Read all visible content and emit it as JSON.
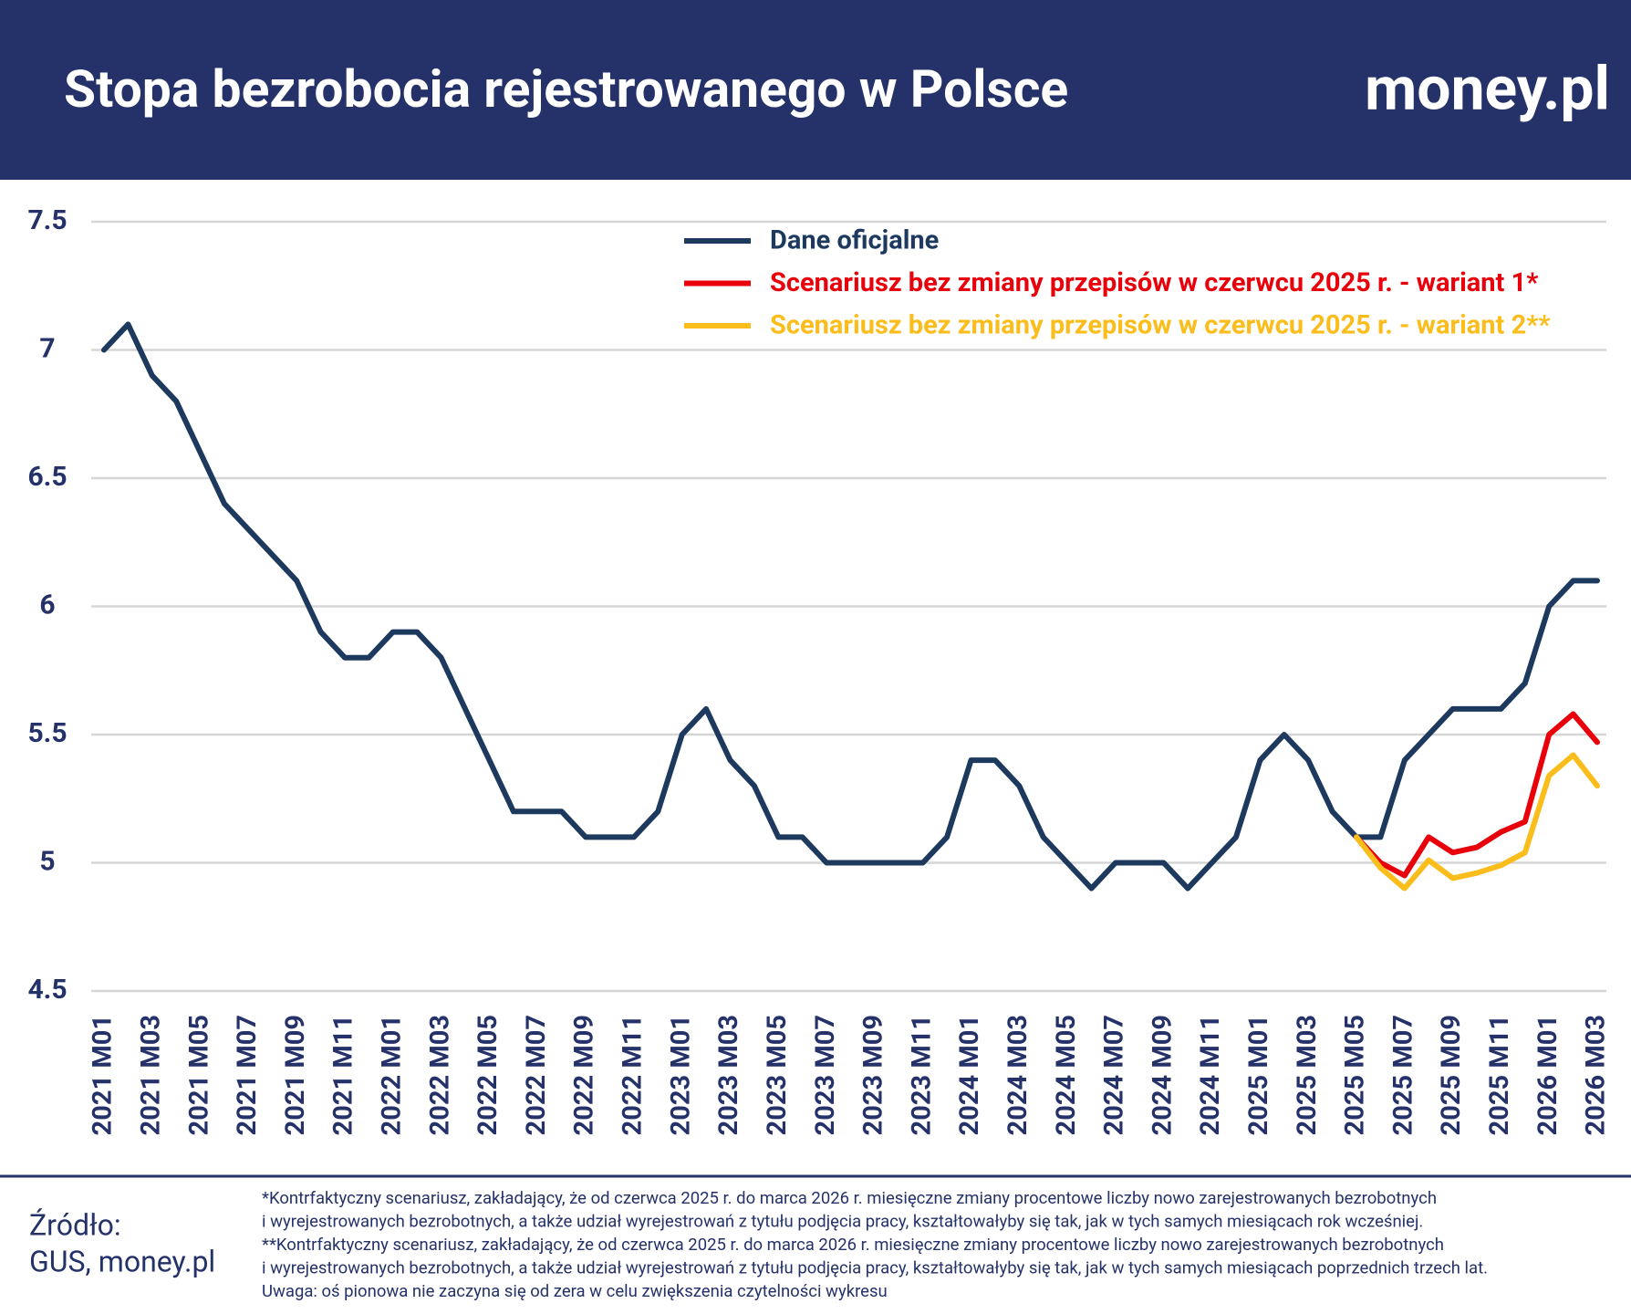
{
  "header": {
    "logo": "money.pl"
  },
  "chart_data": {
    "type": "line",
    "title": "Stopa bezrobocia rejestrowanego w Polsce",
    "categories": [
      "2021 M01",
      null,
      "2021 M03",
      null,
      "2021 M05",
      null,
      "2021 M07",
      null,
      "2021 M09",
      null,
      "2021 M11",
      null,
      "2022 M01",
      null,
      "2022 M03",
      null,
      "2022 M05",
      null,
      "2022 M07",
      null,
      "2022 M09",
      null,
      "2022 M11",
      null,
      "2023 M01",
      null,
      "2023 M03",
      null,
      "2023 M05",
      null,
      "2023 M07",
      null,
      "2023 M09",
      null,
      "2023 M11",
      null,
      "2024 M01",
      null,
      "2024 M03",
      null,
      "2024 M05",
      null,
      "2024 M07",
      null,
      "2024 M09",
      null,
      "2024 M11",
      null,
      "2025 M01",
      null,
      "2025 M03",
      null,
      "2025 M05",
      null,
      "2025 M07",
      null,
      "2025 M09",
      null,
      "2025 M11",
      null,
      "2026 M01",
      null,
      "2026 M03"
    ],
    "series": [
      {
        "name": "Dane oficjalne",
        "color": "#1d3a5e",
        "values": [
          7.0,
          7.1,
          6.9,
          6.8,
          6.6,
          6.4,
          6.3,
          6.2,
          6.1,
          5.9,
          5.8,
          5.8,
          5.9,
          5.9,
          5.8,
          5.6,
          5.4,
          5.2,
          5.2,
          5.2,
          5.1,
          5.1,
          5.1,
          5.2,
          5.5,
          5.6,
          5.4,
          5.3,
          5.1,
          5.1,
          5.0,
          5.0,
          5.0,
          5.0,
          5.0,
          5.1,
          5.4,
          5.4,
          5.3,
          5.1,
          5.0,
          4.9,
          5.0,
          5.0,
          5.0,
          4.9,
          5.0,
          5.1,
          5.4,
          5.5,
          5.4,
          5.2,
          5.1,
          5.1,
          5.4,
          5.5,
          5.6,
          5.6,
          5.6,
          5.7,
          6.0,
          6.1,
          6.1
        ]
      },
      {
        "name": "Scenariusz bez zmiany przepisów w czerwcu 2025 r. - wariant 1*",
        "color": "#e8000b",
        "values": [
          null,
          null,
          null,
          null,
          null,
          null,
          null,
          null,
          null,
          null,
          null,
          null,
          null,
          null,
          null,
          null,
          null,
          null,
          null,
          null,
          null,
          null,
          null,
          null,
          null,
          null,
          null,
          null,
          null,
          null,
          null,
          null,
          null,
          null,
          null,
          null,
          null,
          null,
          null,
          null,
          null,
          null,
          null,
          null,
          null,
          null,
          null,
          null,
          null,
          null,
          null,
          null,
          5.1,
          5.0,
          4.95,
          5.1,
          5.04,
          5.06,
          5.12,
          5.16,
          5.5,
          5.58,
          5.47
        ]
      },
      {
        "name": "Scenariusz bez zmiany przepisów w czerwcu 2025 r. - wariant 2**",
        "color": "#fbbd1b",
        "values": [
          null,
          null,
          null,
          null,
          null,
          null,
          null,
          null,
          null,
          null,
          null,
          null,
          null,
          null,
          null,
          null,
          null,
          null,
          null,
          null,
          null,
          null,
          null,
          null,
          null,
          null,
          null,
          null,
          null,
          null,
          null,
          null,
          null,
          null,
          null,
          null,
          null,
          null,
          null,
          null,
          null,
          null,
          null,
          null,
          null,
          null,
          null,
          null,
          null,
          null,
          null,
          null,
          5.1,
          4.98,
          4.9,
          5.01,
          4.94,
          4.96,
          4.99,
          5.04,
          5.34,
          5.42,
          5.3
        ]
      }
    ],
    "ylim": [
      4.5,
      7.5
    ],
    "yticks": [
      4.5,
      5,
      5.5,
      6,
      6.5,
      7,
      7.5
    ],
    "grid": true,
    "legend": "top-right"
  },
  "footer": {
    "source": [
      "Źródło:",
      "GUS, money.pl"
    ],
    "notes": [
      "*Kontrfaktyczny scenariusz, zakładający, że od czerwca 2025 r. do marca 2026 r. miesięczne zmiany procentowe liczby nowo zarejestrowanych bezrobotnych",
      "i wyrejestrowanych bezrobotnych, a także udział wyrejestrowań z tytułu podjęcia pracy, kształtowałyby się tak, jak w tych samych miesiącach rok wcześniej.",
      "**Kontrfaktyczny scenariusz, zakładający, że od czerwca 2025 r. do marca 2026 r. miesięczne zmiany procentowe liczby nowo zarejestrowanych bezrobotnych",
      "i wyrejestrowanych bezrobotnych, a także udział wyrejestrowań z tytułu podjęcia pracy, kształtowałyby się tak, jak w tych samych miesiącach poprzednich trzech lat.",
      "Uwaga: oś pionowa nie zaczyna się od zera w celu zwiększenia czytelności wykresu"
    ]
  }
}
